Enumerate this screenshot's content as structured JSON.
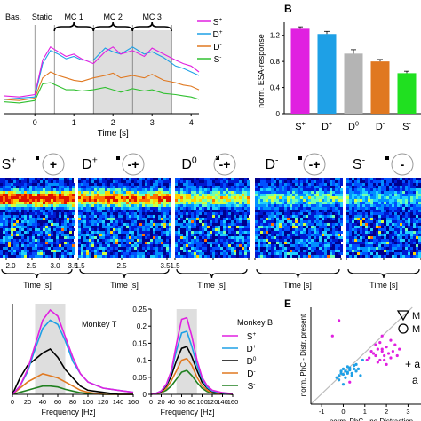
{
  "panel_letters": {
    "b": "B",
    "e": "E"
  },
  "chart_data": [
    {
      "type": "line",
      "panel": "A",
      "xlabel": "Time [s]",
      "x_ticks": [
        "0",
        "1",
        "2",
        "3",
        "4"
      ],
      "xlim": [
        -0.8,
        4.2
      ],
      "epochs": [
        "Bas.",
        "Static",
        "MC 1",
        "MC 2",
        "MC 3"
      ],
      "shaded_range": [
        1.5,
        3.5
      ],
      "series": [
        {
          "name": "S+",
          "color": "#e020e0",
          "x": [
            -0.8,
            -0.4,
            0,
            0.2,
            0.4,
            0.6,
            0.8,
            1.0,
            1.2,
            1.5,
            1.8,
            2.0,
            2.2,
            2.5,
            2.8,
            3.0,
            3.3,
            3.6,
            3.8,
            4.0,
            4.2
          ],
          "y": [
            0.25,
            0.24,
            0.26,
            0.55,
            0.66,
            0.62,
            0.58,
            0.6,
            0.56,
            0.52,
            0.62,
            0.66,
            0.6,
            0.63,
            0.58,
            0.65,
            0.6,
            0.55,
            0.52,
            0.5,
            0.45
          ]
        },
        {
          "name": "D+",
          "color": "#1ea0e6",
          "x": [
            -0.8,
            -0.4,
            0,
            0.2,
            0.4,
            0.6,
            0.8,
            1.0,
            1.2,
            1.5,
            1.8,
            2.0,
            2.2,
            2.5,
            2.8,
            3.0,
            3.3,
            3.6,
            3.8,
            4.0,
            4.2
          ],
          "y": [
            0.22,
            0.23,
            0.24,
            0.52,
            0.63,
            0.6,
            0.56,
            0.58,
            0.55,
            0.55,
            0.65,
            0.62,
            0.6,
            0.66,
            0.6,
            0.62,
            0.57,
            0.5,
            0.48,
            0.45,
            0.42
          ]
        },
        {
          "name": "D-",
          "color": "#e07820",
          "x": [
            -0.8,
            -0.4,
            0,
            0.2,
            0.4,
            0.6,
            0.8,
            1.0,
            1.2,
            1.5,
            1.8,
            2.0,
            2.2,
            2.5,
            2.8,
            3.0,
            3.3,
            3.6,
            3.8,
            4.0,
            4.2
          ],
          "y": [
            0.22,
            0.21,
            0.23,
            0.4,
            0.45,
            0.42,
            0.4,
            0.38,
            0.37,
            0.4,
            0.42,
            0.44,
            0.4,
            0.42,
            0.4,
            0.43,
            0.38,
            0.36,
            0.34,
            0.33,
            0.3
          ]
        },
        {
          "name": "S-",
          "color": "#30c030",
          "x": [
            -0.8,
            -0.4,
            0,
            0.2,
            0.4,
            0.6,
            0.8,
            1.0,
            1.2,
            1.5,
            1.8,
            2.0,
            2.2,
            2.5,
            2.8,
            3.0,
            3.3,
            3.6,
            3.8,
            4.0,
            4.2
          ],
          "y": [
            0.2,
            0.19,
            0.21,
            0.35,
            0.36,
            0.33,
            0.3,
            0.3,
            0.29,
            0.3,
            0.32,
            0.3,
            0.28,
            0.31,
            0.29,
            0.3,
            0.27,
            0.26,
            0.25,
            0.24,
            0.22
          ]
        }
      ]
    },
    {
      "type": "bar",
      "panel": "B",
      "ylabel": "norm. ESA-response",
      "ylim": [
        0,
        1.4
      ],
      "y_ticks": [
        "0",
        "0.4",
        "0.8",
        "1.2"
      ],
      "categories": [
        "S+",
        "D+",
        "D0",
        "D-",
        "S-"
      ],
      "category_labels": [
        {
          "base": "S",
          "sup": "+"
        },
        {
          "base": "D",
          "sup": "+"
        },
        {
          "base": "D",
          "sup": "0"
        },
        {
          "base": "D",
          "sup": "-"
        },
        {
          "base": "S",
          "sup": "-"
        }
      ],
      "values": [
        1.3,
        1.22,
        0.92,
        0.8,
        0.62
      ],
      "errors": [
        0.03,
        0.04,
        0.06,
        0.03,
        0.03
      ],
      "colors": [
        "#e020e0",
        "#1ea0e6",
        "#b4b4b4",
        "#e07820",
        "#20e020"
      ]
    },
    {
      "type": "heatmap",
      "panel": "C",
      "conditions": [
        {
          "base": "S",
          "sup": "+",
          "symbol": "+"
        },
        {
          "base": "D",
          "sup": "+",
          "symbol": "-+"
        },
        {
          "base": "D",
          "sup": "0",
          "symbol": "-+"
        },
        {
          "base": "D",
          "sup": "-",
          "symbol": "-+"
        },
        {
          "base": "S",
          "sup": "-",
          "symbol": "-"
        }
      ],
      "xlabel": "Time [s]",
      "x_ticks": [
        "2.0",
        "2.5",
        "3.0",
        "3.5",
        "1.5",
        "2.5",
        "3.5",
        "1.5"
      ]
    },
    {
      "type": "line",
      "panel": "D-left",
      "title": "Monkey T",
      "xlabel": "Frequency [Hz]",
      "x_ticks": [
        "0",
        "20",
        "40",
        "60",
        "80",
        "100",
        "120",
        "140",
        "160"
      ],
      "xlim": [
        0,
        160
      ],
      "ylim": [
        0,
        0.22
      ],
      "shaded_range": [
        30,
        70
      ],
      "series": [
        {
          "name": "S+",
          "color": "#e020e0",
          "x": [
            0,
            10,
            20,
            30,
            40,
            50,
            60,
            70,
            80,
            90,
            100,
            120,
            140,
            160
          ],
          "y": [
            0.0,
            0.02,
            0.06,
            0.12,
            0.18,
            0.205,
            0.19,
            0.14,
            0.09,
            0.05,
            0.03,
            0.015,
            0.01,
            0.005
          ]
        },
        {
          "name": "D+",
          "color": "#1ea0e6",
          "x": [
            0,
            10,
            20,
            30,
            40,
            50,
            60,
            70,
            80,
            90,
            100,
            120,
            140,
            160
          ],
          "y": [
            0.0,
            0.02,
            0.055,
            0.11,
            0.16,
            0.18,
            0.17,
            0.13,
            0.08,
            0.05,
            0.03,
            0.015,
            0.01,
            0.005
          ]
        },
        {
          "name": "D0",
          "color": "#000000",
          "x": [
            0,
            10,
            20,
            30,
            40,
            50,
            60,
            70,
            80,
            90,
            100,
            120,
            140,
            160
          ],
          "y": [
            0.0,
            0.04,
            0.07,
            0.085,
            0.1,
            0.11,
            0.09,
            0.06,
            0.04,
            0.02,
            0.01,
            0.005,
            0.0,
            0.0
          ]
        },
        {
          "name": "D-",
          "color": "#e07820",
          "x": [
            0,
            10,
            20,
            30,
            40,
            50,
            60,
            70,
            80,
            90,
            100,
            120,
            140,
            160
          ],
          "y": [
            0.0,
            0.015,
            0.03,
            0.04,
            0.05,
            0.045,
            0.04,
            0.03,
            0.02,
            0.01,
            0.005,
            0.0,
            0.0,
            0.0
          ]
        },
        {
          "name": "S-",
          "color": "#208020",
          "x": [
            0,
            10,
            20,
            30,
            40,
            50,
            60,
            70,
            80,
            90,
            100,
            120,
            140,
            160
          ],
          "y": [
            0.0,
            0.005,
            0.01,
            0.015,
            0.02,
            0.02,
            0.018,
            0.012,
            0.008,
            0.004,
            0.002,
            0.0,
            0.0,
            0.0
          ]
        }
      ]
    },
    {
      "type": "line",
      "panel": "D-right",
      "title": "Monkey B",
      "xlabel": "Frequency [Hz]",
      "x_ticks": [
        "0",
        "20",
        "40",
        "60",
        "80",
        "100",
        "120",
        "140",
        "160"
      ],
      "y_ticks": [
        "0",
        "0.05",
        "0.1",
        "0.15",
        "0.2",
        "0.25"
      ],
      "xlim": [
        0,
        160
      ],
      "ylim": [
        0,
        0.25
      ],
      "shaded_range": [
        50,
        90
      ],
      "legend": [
        {
          "base": "S",
          "sup": "+",
          "color": "#e020e0"
        },
        {
          "base": "D",
          "sup": "+",
          "color": "#1ea0e6"
        },
        {
          "base": "D",
          "sup": "0",
          "color": "#000000"
        },
        {
          "base": "D",
          "sup": "-",
          "color": "#e07820"
        },
        {
          "base": "S",
          "sup": "-",
          "color": "#208020"
        }
      ],
      "series": [
        {
          "name": "S+",
          "color": "#e020e0",
          "x": [
            0,
            10,
            20,
            30,
            40,
            50,
            60,
            70,
            80,
            90,
            100,
            110,
            120,
            140,
            160
          ],
          "y": [
            0.0,
            0.003,
            0.01,
            0.03,
            0.07,
            0.15,
            0.22,
            0.225,
            0.17,
            0.1,
            0.05,
            0.025,
            0.012,
            0.005,
            0.002
          ]
        },
        {
          "name": "D+",
          "color": "#1ea0e6",
          "x": [
            0,
            10,
            20,
            30,
            40,
            50,
            60,
            70,
            80,
            90,
            100,
            110,
            120,
            140,
            160
          ],
          "y": [
            0.0,
            0.003,
            0.01,
            0.028,
            0.065,
            0.13,
            0.18,
            0.185,
            0.14,
            0.085,
            0.045,
            0.02,
            0.01,
            0.004,
            0.002
          ]
        },
        {
          "name": "D0",
          "color": "#000000",
          "x": [
            0,
            10,
            20,
            30,
            40,
            50,
            60,
            70,
            80,
            90,
            100,
            110,
            120,
            140,
            160
          ],
          "y": [
            0.0,
            0.003,
            0.008,
            0.025,
            0.055,
            0.1,
            0.135,
            0.14,
            0.11,
            0.07,
            0.035,
            0.018,
            0.008,
            0.003,
            0.0
          ]
        },
        {
          "name": "D-",
          "color": "#e07820",
          "x": [
            0,
            10,
            20,
            30,
            40,
            50,
            60,
            70,
            80,
            90,
            100,
            110,
            120,
            140,
            160
          ],
          "y": [
            0.0,
            0.002,
            0.006,
            0.018,
            0.04,
            0.07,
            0.1,
            0.105,
            0.085,
            0.05,
            0.025,
            0.012,
            0.005,
            0.002,
            0.0
          ]
        },
        {
          "name": "S-",
          "color": "#208020",
          "x": [
            0,
            10,
            20,
            30,
            40,
            50,
            60,
            70,
            80,
            90,
            100,
            110,
            120,
            140,
            160
          ],
          "y": [
            0.0,
            0.002,
            0.005,
            0.012,
            0.025,
            0.045,
            0.065,
            0.07,
            0.055,
            0.035,
            0.018,
            0.008,
            0.004,
            0.001,
            0.0
          ]
        }
      ]
    },
    {
      "type": "scatter",
      "panel": "E",
      "xlabel": "norm. PhC - no Distraction",
      "ylabel": "norm. PhC - Distr. present",
      "x_ticks": [
        "-1",
        "0",
        "1",
        "2",
        "3"
      ],
      "xlim": [
        -1.5,
        3.6
      ],
      "ylim": [
        -1.2,
        3.2
      ],
      "legend_partial": [
        "M",
        "M"
      ],
      "side_labels": [
        "+ a",
        "a"
      ],
      "series": [
        {
          "name": "",
          "color": "#e020e0",
          "marker": "circle",
          "x": [
            1.2,
            1.4,
            1.5,
            1.6,
            1.7,
            1.8,
            1.9,
            2.0,
            2.1,
            2.2,
            1.5,
            1.6,
            1.8,
            2.3,
            2.5,
            2.0,
            1.7,
            1.9,
            1.3,
            2.4,
            1.1,
            2.6,
            2.2,
            1.8,
            0.3,
            -0.2,
            -0.5
          ],
          "y": [
            0.9,
            1.1,
            1.0,
            1.3,
            0.8,
            1.2,
            1.0,
            1.4,
            1.1,
            0.9,
            1.5,
            0.7,
            1.3,
            1.2,
            1.0,
            0.6,
            1.6,
            0.8,
            1.2,
            1.5,
            0.8,
            1.3,
            1.7,
            1.9,
            -0.2,
            2.6,
            1.9
          ]
        },
        {
          "name": "",
          "color": "#1ea0e6",
          "marker": "circle",
          "x": [
            -0.3,
            -0.2,
            -0.1,
            0.0,
            0.1,
            0.2,
            0.3,
            0.4,
            0.5,
            0.6,
            -0.2,
            0.0,
            0.2,
            0.4,
            0.1,
            0.3,
            0.5,
            0.7,
            0.0,
            -0.1,
            0.2,
            0.6,
            0.9,
            0.8
          ],
          "y": [
            0.0,
            0.1,
            0.2,
            0.15,
            0.3,
            0.25,
            0.35,
            0.2,
            0.4,
            0.3,
            -0.1,
            0.4,
            0.5,
            0.1,
            0.0,
            0.45,
            0.55,
            0.4,
            -0.3,
            0.3,
            0.2,
            0.6,
            0.8,
            0.1
          ]
        }
      ]
    }
  ]
}
